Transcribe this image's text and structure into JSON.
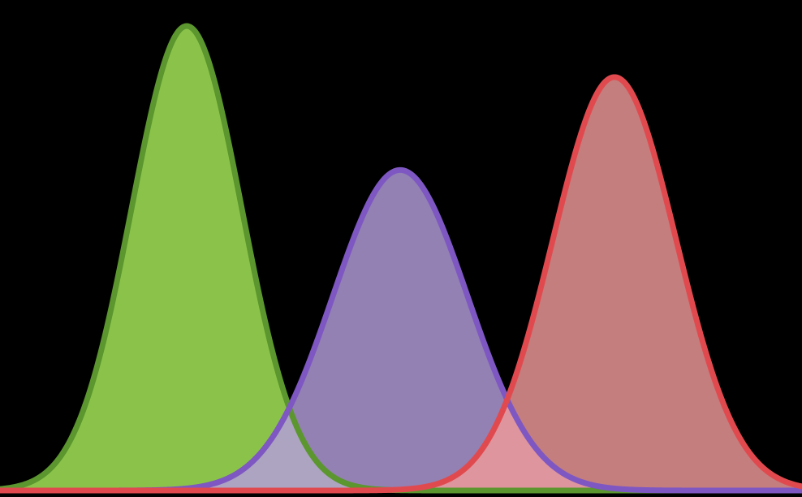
{
  "page": {
    "background": "#000000"
  },
  "chart_data": {
    "type": "area",
    "title": "",
    "xlabel": "",
    "ylabel": "",
    "grid": false,
    "legend": "none",
    "x_range": [
      0,
      988
    ],
    "y_range": [
      0,
      1
    ],
    "series": [
      {
        "mean": 230,
        "sd": 68,
        "peak": 1.0,
        "stroke": "#5b962e",
        "fill": "#8bc34a",
        "fill_opacity": 1.0
      },
      {
        "mean": 493,
        "sd": 83,
        "peak": 0.69,
        "stroke": "#7e57c2",
        "fill": "#b39ddb",
        "fill_opacity": 0.82
      },
      {
        "mean": 757,
        "sd": 76,
        "peak": 0.89,
        "stroke": "#e04a4f",
        "fill": "#ef9a9a",
        "fill_opacity": 0.82
      }
    ]
  }
}
